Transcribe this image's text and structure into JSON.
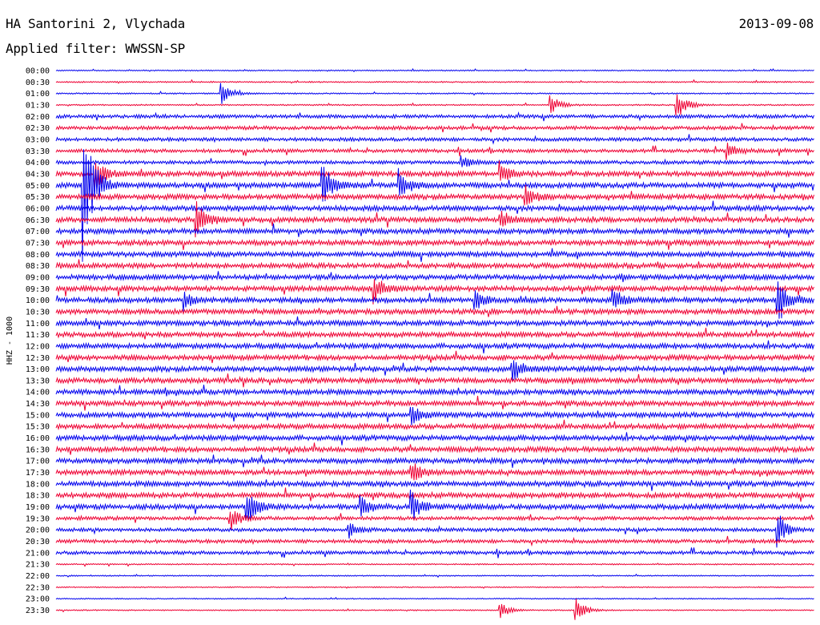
{
  "header": {
    "station": "HA Santorini 2, Vlychada",
    "date": "2013-09-08",
    "filter": "Applied filter: WWSSN-SP"
  },
  "chart_data": {
    "type": "line",
    "title": "",
    "xlabel": "",
    "ylabel": "HHZ - 1000",
    "row_labels": [
      "00:00",
      "00:30",
      "01:00",
      "01:30",
      "02:00",
      "02:30",
      "03:00",
      "03:30",
      "04:00",
      "04:30",
      "05:00",
      "05:30",
      "06:00",
      "06:30",
      "07:00",
      "07:30",
      "08:00",
      "08:30",
      "09:00",
      "09:30",
      "10:00",
      "10:30",
      "11:00",
      "11:30",
      "12:00",
      "12:30",
      "13:00",
      "13:30",
      "14:00",
      "14:30",
      "15:00",
      "15:30",
      "16:00",
      "16:30",
      "17:00",
      "17:30",
      "18:00",
      "18:30",
      "19:00",
      "19:30",
      "20:00",
      "20:30",
      "21:00",
      "21:30",
      "22:00",
      "22:30",
      "23:00",
      "23:30"
    ],
    "colors": [
      "#0000ee",
      "#ee0033"
    ],
    "events": [
      {
        "row": "01:00",
        "minute": 6.5,
        "amplitude": 12
      },
      {
        "row": "01:30",
        "minute": 19.5,
        "amplitude": 10
      },
      {
        "row": "01:30",
        "minute": 24.5,
        "amplitude": 16
      },
      {
        "row": "03:30",
        "minute": 26.5,
        "amplitude": 8
      },
      {
        "row": "04:00",
        "minute": 16.0,
        "amplitude": 6
      },
      {
        "row": "04:30",
        "minute": 1.5,
        "amplitude": 16
      },
      {
        "row": "04:30",
        "minute": 17.5,
        "amplitude": 10
      },
      {
        "row": "05:00",
        "minute": 1.0,
        "amplitude": 80
      },
      {
        "row": "05:00",
        "minute": 10.5,
        "amplitude": 24
      },
      {
        "row": "05:00",
        "minute": 13.5,
        "amplitude": 16
      },
      {
        "row": "05:30",
        "minute": 18.5,
        "amplitude": 10
      },
      {
        "row": "06:30",
        "minute": 5.5,
        "amplitude": 20
      },
      {
        "row": "06:30",
        "minute": 17.5,
        "amplitude": 10
      },
      {
        "row": "09:30",
        "minute": 12.5,
        "amplitude": 14
      },
      {
        "row": "10:00",
        "minute": 5.0,
        "amplitude": 9
      },
      {
        "row": "10:00",
        "minute": 16.5,
        "amplitude": 10
      },
      {
        "row": "10:00",
        "minute": 22.0,
        "amplitude": 12
      },
      {
        "row": "10:00",
        "minute": 28.5,
        "amplitude": 22
      },
      {
        "row": "13:00",
        "minute": 18.0,
        "amplitude": 12
      },
      {
        "row": "15:00",
        "minute": 14.0,
        "amplitude": 10
      },
      {
        "row": "17:30",
        "minute": 14.0,
        "amplitude": 12
      },
      {
        "row": "19:00",
        "minute": 7.5,
        "amplitude": 20
      },
      {
        "row": "19:00",
        "minute": 12.0,
        "amplitude": 10
      },
      {
        "row": "19:00",
        "minute": 14.0,
        "amplitude": 14
      },
      {
        "row": "19:30",
        "minute": 6.8,
        "amplitude": 14
      },
      {
        "row": "20:00",
        "minute": 11.5,
        "amplitude": 8
      },
      {
        "row": "20:00",
        "minute": 28.5,
        "amplitude": 16
      },
      {
        "row": "23:30",
        "minute": 17.5,
        "amplitude": 8
      },
      {
        "row": "23:30",
        "minute": 20.5,
        "amplitude": 12
      }
    ]
  }
}
